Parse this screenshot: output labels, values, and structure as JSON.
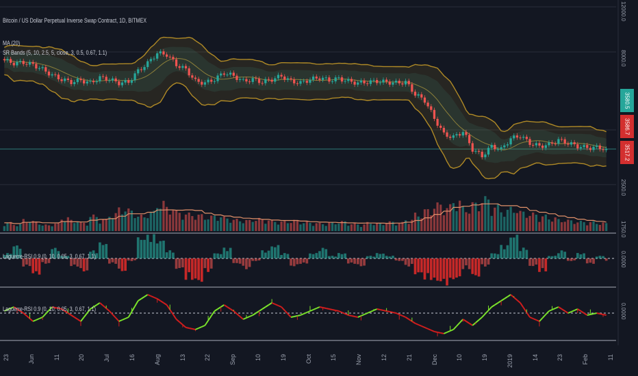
{
  "chart_data": [
    {
      "type": "candlestick",
      "title": "Bitcoin / US Dollar Perpetual Inverse Swap Contract, 1D, BITMEX",
      "indicators": [
        "MA (20)",
        "SR Bands (5, 10, 2.5, 5, close, 3, 0.5, 0.67, 1.1)"
      ],
      "price_scale": "log",
      "y_ticks": [
        "12000.0",
        "8000.0",
        "2500.0",
        "1750.0"
      ],
      "x_ticks": [
        "23",
        "Jun",
        "11",
        "20",
        "Jul",
        "16",
        "Aug",
        "13",
        "22",
        "Sep",
        "10",
        "19",
        "Oct",
        "15",
        "Nov",
        "12",
        "21",
        "Dec",
        "10",
        "19",
        "2019",
        "14",
        "23",
        "Feb",
        "11"
      ],
      "price_tags": [
        {
          "label": "3580.5",
          "color": "#26a69a"
        },
        {
          "label": "3586.7",
          "color": "#d32f2f"
        },
        {
          "label": "3517.2",
          "color": "#d32f2f"
        }
      ],
      "close_series": [
        7700,
        7500,
        7550,
        7400,
        7100,
        6750,
        6500,
        6350,
        6450,
        6300,
        6600,
        6500,
        6300,
        6350,
        7000,
        7500,
        8200,
        8100,
        7400,
        7100,
        6400,
        6300,
        6500,
        6900,
        6700,
        6400,
        6500,
        6350,
        6500,
        6700,
        6400,
        6300,
        6500,
        6600,
        6450,
        6550,
        6400,
        6300,
        6350,
        6400,
        6350,
        6300,
        6350,
        5700,
        5400,
        4600,
        4000,
        3900,
        4100,
        3500,
        3300,
        3600,
        3500,
        3850,
        3950,
        3700,
        3600,
        3650,
        3800,
        3700,
        3600,
        3550,
        3560,
        3520
      ],
      "volume_series": [
        22,
        18,
        30,
        25,
        16,
        20,
        35,
        28,
        22,
        40,
        30,
        45,
        60,
        55,
        40,
        50,
        75,
        62,
        50,
        45,
        42,
        38,
        40,
        35,
        30,
        28,
        32,
        30,
        26,
        25,
        28,
        24,
        22,
        20,
        22,
        25,
        20,
        18,
        22,
        20,
        24,
        22,
        30,
        45,
        55,
        70,
        65,
        80,
        60,
        72,
        85,
        65,
        55,
        60,
        50,
        45,
        40,
        35,
        30,
        28,
        25,
        24,
        22,
        20
      ]
    },
    {
      "type": "bar",
      "title": "Laguerre-RSI 0.9 (0, 10, 0.05, 3, 0.67, 1.1)",
      "zero_label": "0.0000",
      "values": [
        0.2,
        0.5,
        -0.3,
        -0.6,
        -0.2,
        0.4,
        0.1,
        -0.3,
        -0.5,
        0.3,
        0.6,
        -0.2,
        -0.5,
        -0.1,
        0.8,
        0.9,
        0.7,
        0.3,
        -0.4,
        -0.8,
        -0.9,
        -0.5,
        0.2,
        0.4,
        -0.2,
        -0.4,
        -0.1,
        0.3,
        0.5,
        0.2,
        -0.3,
        -0.2,
        0.2,
        0.4,
        0.1,
        0.2,
        -0.2,
        -0.3,
        0.1,
        0.2,
        0.1,
        -0.1,
        -0.3,
        -0.6,
        -0.8,
        -0.9,
        -1.0,
        -0.8,
        -0.4,
        -0.7,
        -0.3,
        0.2,
        0.5,
        0.9,
        0.4,
        -0.3,
        -0.5,
        0.1,
        0.3,
        -0.1,
        0.2,
        -0.2,
        0.1,
        -0.1
      ]
    },
    {
      "type": "line",
      "title": "Laguerre-RSI 0.9 (0, 10, 0.05, 3, 0.67, 1.1)",
      "zero_label": "0.0000",
      "values": [
        0.1,
        0.3,
        0.0,
        -0.4,
        -0.2,
        0.3,
        0.2,
        -0.1,
        -0.4,
        0.2,
        0.5,
        0.1,
        -0.4,
        -0.2,
        0.6,
        0.9,
        0.7,
        0.4,
        -0.3,
        -0.7,
        -0.8,
        -0.6,
        0.1,
        0.4,
        0.1,
        -0.3,
        -0.1,
        0.2,
        0.5,
        0.3,
        -0.2,
        -0.1,
        0.1,
        0.3,
        0.2,
        0.1,
        -0.1,
        -0.2,
        0.0,
        0.2,
        0.1,
        0.0,
        -0.2,
        -0.5,
        -0.7,
        -0.9,
        -1.0,
        -0.8,
        -0.3,
        -0.6,
        -0.2,
        0.3,
        0.6,
        0.9,
        0.5,
        -0.2,
        -0.4,
        0.1,
        0.3,
        0.0,
        0.2,
        -0.1,
        0.0,
        -0.1
      ]
    }
  ],
  "colors": {
    "background": "#131722",
    "up": "#26a69a",
    "down": "#ef5350",
    "band": "#b08a26",
    "green": "#7be32b",
    "red": "#d11d1d"
  }
}
